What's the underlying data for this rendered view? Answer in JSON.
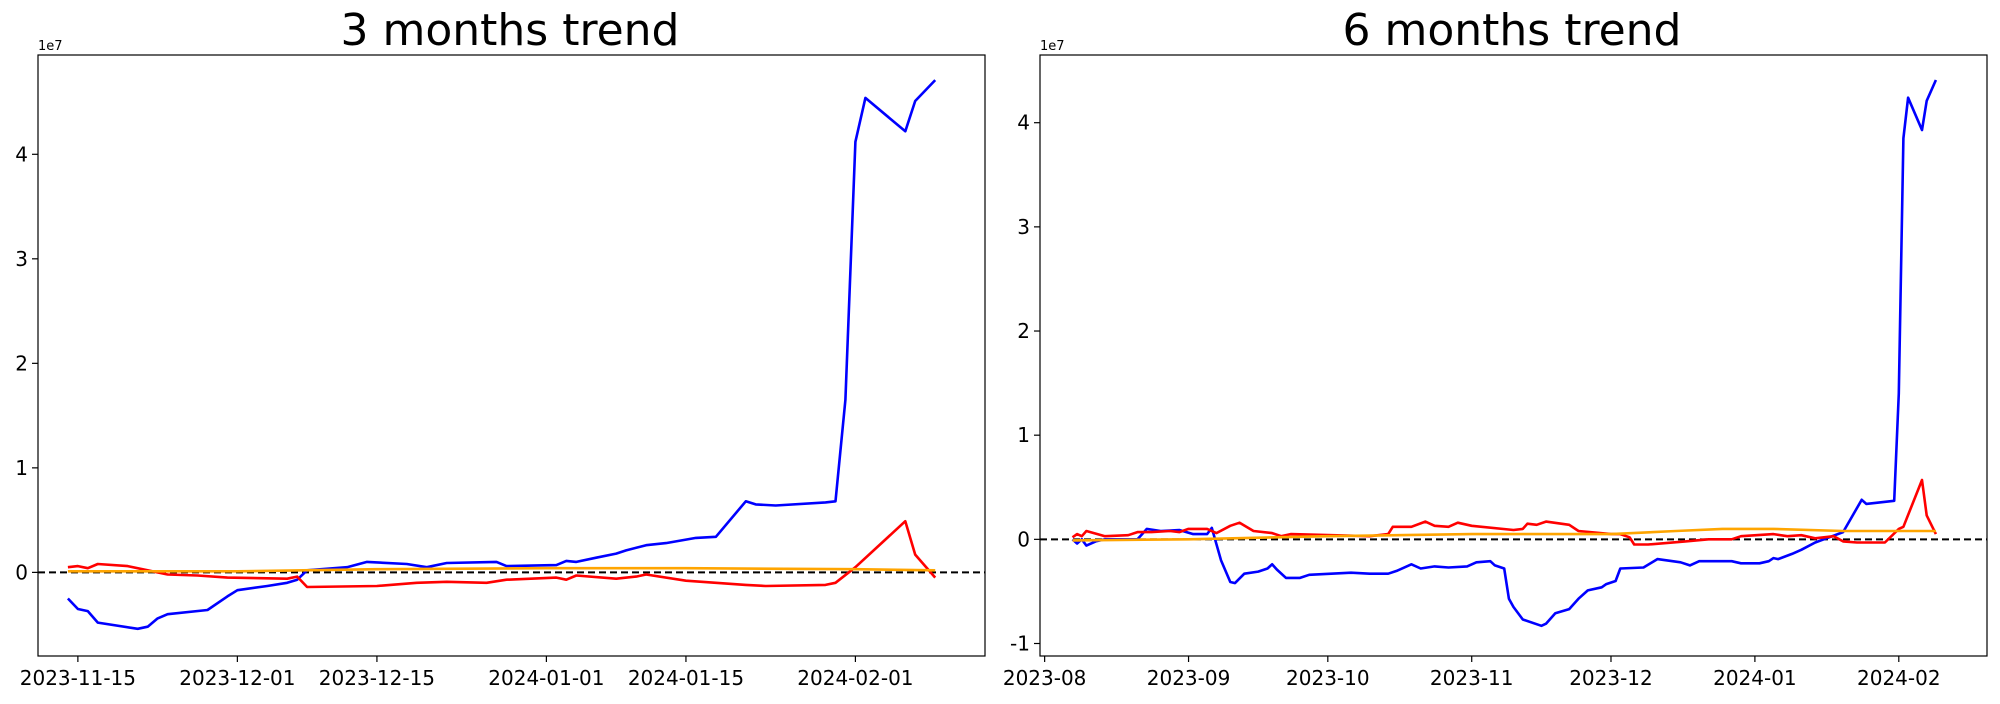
{
  "chart_data": [
    {
      "type": "line",
      "title": "3 months trend",
      "xlabel": "",
      "ylabel": "",
      "y_offset_label": "1e7",
      "x_range": [
        "2023-11-11",
        "2024-02-14"
      ],
      "ylim": [
        -0.8,
        4.95
      ],
      "x_ticks": [
        "2023-11-15",
        "2023-12-01",
        "2023-12-15",
        "2024-01-01",
        "2024-01-15",
        "2024-02-01"
      ],
      "y_ticks": [
        0,
        1,
        2,
        3,
        4
      ],
      "reference_line": {
        "y": 0,
        "color": "#000000",
        "style": "dashed"
      },
      "grid": false,
      "legend": "none",
      "series": [
        {
          "color": "#0000ff",
          "points": [
            [
              "2023-11-14",
              -0.25
            ],
            [
              "2023-11-15",
              -0.35
            ],
            [
              "2023-11-16",
              -0.37
            ],
            [
              "2023-11-17",
              -0.48
            ],
            [
              "2023-11-21",
              -0.54
            ],
            [
              "2023-11-22",
              -0.52
            ],
            [
              "2023-11-23",
              -0.44
            ],
            [
              "2023-11-24",
              -0.4
            ],
            [
              "2023-11-28",
              -0.36
            ],
            [
              "2023-11-30",
              -0.23
            ],
            [
              "2023-12-01",
              -0.17
            ],
            [
              "2023-12-04",
              -0.13
            ],
            [
              "2023-12-06",
              -0.1
            ],
            [
              "2023-12-07",
              -0.07
            ],
            [
              "2023-12-08",
              0.02
            ],
            [
              "2023-12-12",
              0.05
            ],
            [
              "2023-12-14",
              0.1
            ],
            [
              "2023-12-18",
              0.08
            ],
            [
              "2023-12-20",
              0.05
            ],
            [
              "2023-12-22",
              0.09
            ],
            [
              "2023-12-27",
              0.1
            ],
            [
              "2023-12-28",
              0.06
            ],
            [
              "2024-01-02",
              0.07
            ],
            [
              "2024-01-03",
              0.11
            ],
            [
              "2024-01-04",
              0.1
            ],
            [
              "2024-01-06",
              0.14
            ],
            [
              "2024-01-08",
              0.18
            ],
            [
              "2024-01-09",
              0.21
            ],
            [
              "2024-01-11",
              0.26
            ],
            [
              "2024-01-13",
              0.28
            ],
            [
              "2024-01-16",
              0.33
            ],
            [
              "2024-01-18",
              0.34
            ],
            [
              "2024-01-21",
              0.68
            ],
            [
              "2024-01-22",
              0.65
            ],
            [
              "2024-01-24",
              0.64
            ],
            [
              "2024-01-29",
              0.67
            ],
            [
              "2024-01-30",
              0.68
            ],
            [
              "2024-01-31",
              1.65
            ],
            [
              "2024-02-01",
              4.12
            ],
            [
              "2024-02-02",
              4.54
            ],
            [
              "2024-02-06",
              4.22
            ],
            [
              "2024-02-07",
              4.51
            ],
            [
              "2024-02-09",
              4.71
            ]
          ]
        },
        {
          "color": "#ff0000",
          "points": [
            [
              "2023-11-14",
              0.05
            ],
            [
              "2023-11-15",
              0.06
            ],
            [
              "2023-11-16",
              0.04
            ],
            [
              "2023-11-17",
              0.08
            ],
            [
              "2023-11-20",
              0.06
            ],
            [
              "2023-11-22",
              0.02
            ],
            [
              "2023-11-24",
              -0.02
            ],
            [
              "2023-11-27",
              -0.03
            ],
            [
              "2023-11-30",
              -0.05
            ],
            [
              "2023-12-06",
              -0.06
            ],
            [
              "2023-12-07",
              -0.04
            ],
            [
              "2023-12-08",
              -0.14
            ],
            [
              "2023-12-15",
              -0.13
            ],
            [
              "2023-12-19",
              -0.1
            ],
            [
              "2023-12-22",
              -0.09
            ],
            [
              "2023-12-26",
              -0.1
            ],
            [
              "2023-12-28",
              -0.07
            ],
            [
              "2024-01-02",
              -0.05
            ],
            [
              "2024-01-03",
              -0.07
            ],
            [
              "2024-01-04",
              -0.03
            ],
            [
              "2024-01-08",
              -0.06
            ],
            [
              "2024-01-10",
              -0.04
            ],
            [
              "2024-01-11",
              -0.02
            ],
            [
              "2024-01-15",
              -0.08
            ],
            [
              "2024-01-21",
              -0.12
            ],
            [
              "2024-01-23",
              -0.13
            ],
            [
              "2024-01-29",
              -0.12
            ],
            [
              "2024-01-30",
              -0.1
            ],
            [
              "2024-02-01",
              0.05
            ],
            [
              "2024-02-06",
              0.49
            ],
            [
              "2024-02-07",
              0.17
            ],
            [
              "2024-02-09",
              -0.05
            ]
          ]
        },
        {
          "color": "#ffa500",
          "points": [
            [
              "2023-11-14",
              0.01
            ],
            [
              "2023-12-01",
              0.01
            ],
            [
              "2023-12-15",
              0.03
            ],
            [
              "2024-01-01",
              0.04
            ],
            [
              "2024-01-15",
              0.04
            ],
            [
              "2024-02-01",
              0.03
            ],
            [
              "2024-02-09",
              0.02
            ]
          ]
        }
      ]
    },
    {
      "type": "line",
      "title": "6 months trend",
      "xlabel": "",
      "ylabel": "",
      "y_offset_label": "1e7",
      "x_range": [
        "2023-07-31",
        "2024-02-20"
      ],
      "ylim": [
        -1.12,
        4.65
      ],
      "x_ticks": [
        "2023-08",
        "2023-09",
        "2023-10",
        "2023-11",
        "2023-12",
        "2024-01",
        "2024-02"
      ],
      "y_ticks": [
        -1,
        0,
        1,
        2,
        3,
        4
      ],
      "reference_line": {
        "y": 0,
        "color": "#000000",
        "style": "dashed"
      },
      "grid": false,
      "legend": "none",
      "series": [
        {
          "color": "#0000ff",
          "points": [
            [
              "2023-08-07",
              0.0
            ],
            [
              "2023-08-08",
              -0.04
            ],
            [
              "2023-08-09",
              0.0
            ],
            [
              "2023-08-10",
              -0.06
            ],
            [
              "2023-08-12",
              -0.02
            ],
            [
              "2023-08-14",
              0.0
            ],
            [
              "2023-08-21",
              0.0
            ],
            [
              "2023-08-23",
              0.1
            ],
            [
              "2023-08-26",
              0.08
            ],
            [
              "2023-08-30",
              0.09
            ],
            [
              "2023-09-02",
              0.05
            ],
            [
              "2023-09-05",
              0.05
            ],
            [
              "2023-09-06",
              0.11
            ],
            [
              "2023-09-08",
              -0.2
            ],
            [
              "2023-09-10",
              -0.41
            ],
            [
              "2023-09-11",
              -0.42
            ],
            [
              "2023-09-13",
              -0.33
            ],
            [
              "2023-09-16",
              -0.31
            ],
            [
              "2023-09-18",
              -0.28
            ],
            [
              "2023-09-19",
              -0.24
            ],
            [
              "2023-09-20",
              -0.29
            ],
            [
              "2023-09-22",
              -0.37
            ],
            [
              "2023-09-25",
              -0.37
            ],
            [
              "2023-09-27",
              -0.34
            ],
            [
              "2023-10-06",
              -0.32
            ],
            [
              "2023-10-10",
              -0.33
            ],
            [
              "2023-10-14",
              -0.33
            ],
            [
              "2023-10-16",
              -0.3
            ],
            [
              "2023-10-19",
              -0.24
            ],
            [
              "2023-10-21",
              -0.28
            ],
            [
              "2023-10-24",
              -0.26
            ],
            [
              "2023-10-27",
              -0.27
            ],
            [
              "2023-10-31",
              -0.26
            ],
            [
              "2023-11-02",
              -0.22
            ],
            [
              "2023-11-05",
              -0.21
            ],
            [
              "2023-11-06",
              -0.25
            ],
            [
              "2023-11-08",
              -0.28
            ],
            [
              "2023-11-09",
              -0.57
            ],
            [
              "2023-11-10",
              -0.65
            ],
            [
              "2023-11-12",
              -0.77
            ],
            [
              "2023-11-16",
              -0.83
            ],
            [
              "2023-11-17",
              -0.81
            ],
            [
              "2023-11-19",
              -0.71
            ],
            [
              "2023-11-22",
              -0.67
            ],
            [
              "2023-11-24",
              -0.57
            ],
            [
              "2023-11-26",
              -0.49
            ],
            [
              "2023-11-29",
              -0.46
            ],
            [
              "2023-11-30",
              -0.43
            ],
            [
              "2023-12-02",
              -0.4
            ],
            [
              "2023-12-03",
              -0.28
            ],
            [
              "2023-12-08",
              -0.27
            ],
            [
              "2023-12-11",
              -0.19
            ],
            [
              "2023-12-16",
              -0.22
            ],
            [
              "2023-12-18",
              -0.25
            ],
            [
              "2023-12-20",
              -0.21
            ],
            [
              "2023-12-27",
              -0.21
            ],
            [
              "2023-12-29",
              -0.23
            ],
            [
              "2024-01-02",
              -0.23
            ],
            [
              "2024-01-04",
              -0.21
            ],
            [
              "2024-01-05",
              -0.18
            ],
            [
              "2024-01-06",
              -0.19
            ],
            [
              "2024-01-09",
              -0.14
            ],
            [
              "2024-01-11",
              -0.1
            ],
            [
              "2024-01-14",
              -0.03
            ],
            [
              "2024-01-17",
              0.02
            ],
            [
              "2024-01-20",
              0.07
            ],
            [
              "2024-01-24",
              0.38
            ],
            [
              "2024-01-25",
              0.34
            ],
            [
              "2024-01-31",
              0.37
            ],
            [
              "2024-02-01",
              1.4
            ],
            [
              "2024-02-02",
              3.85
            ],
            [
              "2024-02-03",
              4.24
            ],
            [
              "2024-02-06",
              3.93
            ],
            [
              "2024-02-07",
              4.21
            ],
            [
              "2024-02-09",
              4.41
            ]
          ]
        },
        {
          "color": "#ff0000",
          "points": [
            [
              "2023-08-07",
              0.02
            ],
            [
              "2023-08-08",
              0.05
            ],
            [
              "2023-08-09",
              0.03
            ],
            [
              "2023-08-10",
              0.08
            ],
            [
              "2023-08-14",
              0.03
            ],
            [
              "2023-08-19",
              0.04
            ],
            [
              "2023-08-21",
              0.07
            ],
            [
              "2023-08-24",
              0.07
            ],
            [
              "2023-08-28",
              0.08
            ],
            [
              "2023-08-30",
              0.07
            ],
            [
              "2023-09-01",
              0.1
            ],
            [
              "2023-09-05",
              0.1
            ],
            [
              "2023-09-07",
              0.06
            ],
            [
              "2023-09-10",
              0.13
            ],
            [
              "2023-09-12",
              0.16
            ],
            [
              "2023-09-15",
              0.08
            ],
            [
              "2023-09-19",
              0.06
            ],
            [
              "2023-09-21",
              0.03
            ],
            [
              "2023-09-23",
              0.05
            ],
            [
              "2023-10-10",
              0.03
            ],
            [
              "2023-10-14",
              0.05
            ],
            [
              "2023-10-15",
              0.12
            ],
            [
              "2023-10-19",
              0.12
            ],
            [
              "2023-10-22",
              0.17
            ],
            [
              "2023-10-24",
              0.13
            ],
            [
              "2023-10-27",
              0.12
            ],
            [
              "2023-10-29",
              0.16
            ],
            [
              "2023-11-01",
              0.13
            ],
            [
              "2023-11-10",
              0.09
            ],
            [
              "2023-11-12",
              0.1
            ],
            [
              "2023-11-13",
              0.15
            ],
            [
              "2023-11-15",
              0.14
            ],
            [
              "2023-11-17",
              0.17
            ],
            [
              "2023-11-22",
              0.14
            ],
            [
              "2023-11-24",
              0.08
            ],
            [
              "2023-12-01",
              0.05
            ],
            [
              "2023-12-03",
              0.05
            ],
            [
              "2023-12-05",
              0.02
            ],
            [
              "2023-12-06",
              -0.05
            ],
            [
              "2023-12-09",
              -0.05
            ],
            [
              "2023-12-17",
              -0.02
            ],
            [
              "2023-12-22",
              0.0
            ],
            [
              "2023-12-27",
              0.0
            ],
            [
              "2023-12-29",
              0.03
            ],
            [
              "2024-01-05",
              0.05
            ],
            [
              "2024-01-08",
              0.03
            ],
            [
              "2024-01-11",
              0.04
            ],
            [
              "2024-01-14",
              0.01
            ],
            [
              "2024-01-18",
              0.03
            ],
            [
              "2024-01-20",
              -0.02
            ],
            [
              "2024-01-23",
              -0.03
            ],
            [
              "2024-01-29",
              -0.03
            ],
            [
              "2024-02-01",
              0.1
            ],
            [
              "2024-02-02",
              0.12
            ],
            [
              "2024-02-06",
              0.57
            ],
            [
              "2024-02-07",
              0.23
            ],
            [
              "2024-02-09",
              0.05
            ]
          ]
        },
        {
          "color": "#ffa500",
          "points": [
            [
              "2023-08-07",
              -0.01
            ],
            [
              "2023-09-01",
              0.0
            ],
            [
              "2023-10-01",
              0.03
            ],
            [
              "2023-11-01",
              0.05
            ],
            [
              "2023-12-01",
              0.05
            ],
            [
              "2023-12-15",
              0.08
            ],
            [
              "2023-12-25",
              0.1
            ],
            [
              "2024-01-05",
              0.1
            ],
            [
              "2024-01-20",
              0.08
            ],
            [
              "2024-02-09",
              0.08
            ]
          ]
        }
      ]
    }
  ]
}
